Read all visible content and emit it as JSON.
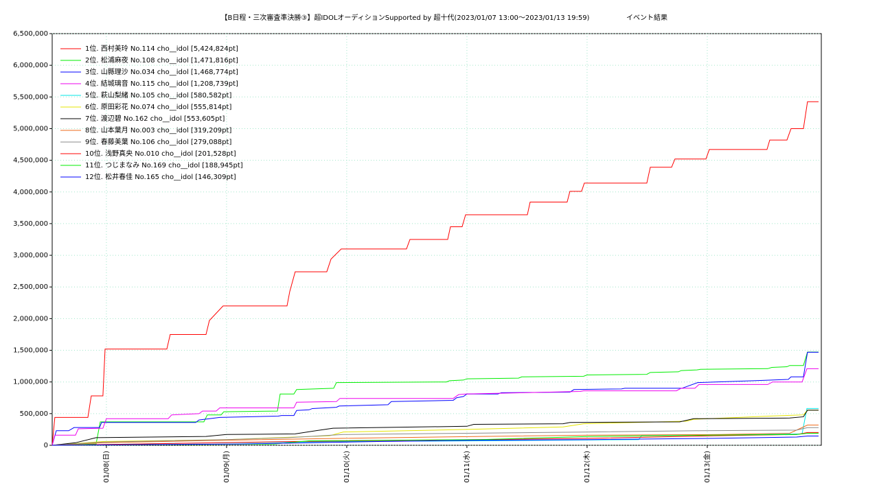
{
  "chart_data": {
    "type": "line",
    "title": "【B日程・三次審査準決勝③】超IDOLオーディションSupported by 超十代(2023/01/07 13:00～2023/01/13 19:59)",
    "subtitle": "イベント結果",
    "xlim": [
      0.549,
      6.949
    ],
    "xticks": [
      {
        "value": 1,
        "label": "01/08(日)"
      },
      {
        "value": 2,
        "label": "01/09(月)"
      },
      {
        "value": 3,
        "label": "01/10(火)"
      },
      {
        "value": 4,
        "label": "01/11(水)"
      },
      {
        "value": 5,
        "label": "01/12(木)"
      },
      {
        "value": 6,
        "label": "01/13(金)"
      }
    ],
    "ylim": [
      0,
      6500000
    ],
    "yticks": [
      {
        "value": 0,
        "label": "0"
      },
      {
        "value": 500000,
        "label": "500,000"
      },
      {
        "value": 1000000,
        "label": "1,000,000"
      },
      {
        "value": 1500000,
        "label": "1,500,000"
      },
      {
        "value": 2000000,
        "label": "2,000,000"
      },
      {
        "value": 2500000,
        "label": "2,500,000"
      },
      {
        "value": 3000000,
        "label": "3,000,000"
      },
      {
        "value": 3500000,
        "label": "3,500,000"
      },
      {
        "value": 4000000,
        "label": "4,000,000"
      },
      {
        "value": 4500000,
        "label": "4,500,000"
      },
      {
        "value": 5000000,
        "label": "5,000,000"
      },
      {
        "value": 5500000,
        "label": "5,500,000"
      },
      {
        "value": 6000000,
        "label": "6,000,000"
      },
      {
        "value": 6500000,
        "label": "6,500,000"
      }
    ],
    "grid": true,
    "legend": "upper left",
    "series": [
      {
        "name": "1位. 西村美玲 No.114 cho__idol [5,424,824pt]",
        "color": "#ff0000",
        "x": [
          0.549,
          0.571,
          0.846,
          0.874,
          0.971,
          0.989,
          1.503,
          1.531,
          1.829,
          1.857,
          1.971,
          2.503,
          2.526,
          2.571,
          2.834,
          2.869,
          2.954,
          3.497,
          3.526,
          3.84,
          3.863,
          3.96,
          3.989,
          4.503,
          4.526,
          4.834,
          4.857,
          4.954,
          4.977,
          5.497,
          5.526,
          5.703,
          5.731,
          5.989,
          6.017,
          6.497,
          6.52,
          6.663,
          6.697,
          6.8,
          6.834,
          6.926
        ],
        "values": [
          0,
          440000,
          440000,
          780000,
          780000,
          1520000,
          1520000,
          1750000,
          1750000,
          1970000,
          2200000,
          2200000,
          2430000,
          2740000,
          2740000,
          2940000,
          3100000,
          3100000,
          3250000,
          3250000,
          3450000,
          3450000,
          3640000,
          3640000,
          3840000,
          3840000,
          4010000,
          4010000,
          4140000,
          4140000,
          4390000,
          4390000,
          4520000,
          4520000,
          4670000,
          4670000,
          4820000,
          4820000,
          5000000,
          5000000,
          5424824,
          5424824
        ]
      },
      {
        "name": "2位. 松浦麻夜 No.108 cho__idol [1,471,816pt]",
        "color": "#00ee00",
        "x": [
          0.549,
          0.914,
          0.949,
          1.811,
          1.84,
          1.954,
          1.977,
          2.423,
          2.446,
          2.56,
          2.583,
          2.891,
          2.914,
          3.829,
          3.857,
          3.971,
          4.0,
          4.429,
          4.457,
          4.971,
          5.0,
          5.497,
          5.526,
          5.76,
          5.783,
          5.914,
          5.943,
          6.503,
          6.537,
          6.663,
          6.686,
          6.8,
          6.834,
          6.926
        ],
        "values": [
          0,
          20000,
          370000,
          370000,
          480000,
          480000,
          530000,
          540000,
          810000,
          810000,
          880000,
          900000,
          990000,
          1000000,
          1020000,
          1030000,
          1050000,
          1060000,
          1080000,
          1090000,
          1110000,
          1120000,
          1150000,
          1160000,
          1180000,
          1190000,
          1200000,
          1210000,
          1230000,
          1240000,
          1260000,
          1260000,
          1471816,
          1471816
        ]
      },
      {
        "name": "3位. 山縣理沙 No.034 cho__idol [1,468,774pt]",
        "color": "#0000ff",
        "x": [
          0.549,
          0.583,
          0.686,
          0.731,
          0.943,
          0.96,
          1.743,
          1.771,
          1.943,
          2.429,
          2.457,
          2.56,
          2.583,
          2.686,
          2.714,
          2.914,
          2.937,
          3.343,
          3.371,
          3.886,
          3.914,
          3.971,
          4.0,
          4.257,
          4.286,
          4.857,
          4.891,
          5.286,
          5.314,
          5.789,
          5.92,
          6.389,
          6.674,
          6.697,
          6.8,
          6.834,
          6.926
        ],
        "values": [
          0,
          230000,
          230000,
          280000,
          280000,
          360000,
          360000,
          400000,
          440000,
          460000,
          470000,
          470000,
          550000,
          560000,
          580000,
          600000,
          620000,
          640000,
          690000,
          710000,
          750000,
          770000,
          810000,
          810000,
          830000,
          840000,
          880000,
          890000,
          900000,
          900000,
          990000,
          1020000,
          1040000,
          1080000,
          1080000,
          1468774,
          1468774
        ]
      },
      {
        "name": "4位. 結城璃音 No.115 cho__idol [1,208,739pt]",
        "color": "#ee00ee",
        "x": [
          0.549,
          0.571,
          0.743,
          0.766,
          0.971,
          1.0,
          1.514,
          1.543,
          1.771,
          1.8,
          1.914,
          1.943,
          2.56,
          2.583,
          2.914,
          2.943,
          3.886,
          3.931,
          3.989,
          4.943,
          4.971,
          5.743,
          5.783,
          5.897,
          5.931,
          6.503,
          6.543,
          6.789,
          6.829,
          6.926
        ],
        "values": [
          0,
          160000,
          160000,
          260000,
          270000,
          420000,
          420000,
          480000,
          500000,
          540000,
          540000,
          590000,
          590000,
          680000,
          690000,
          740000,
          740000,
          800000,
          810000,
          850000,
          860000,
          860000,
          900000,
          900000,
          960000,
          960000,
          1000000,
          1000000,
          1208739,
          1208739
        ]
      },
      {
        "name": "5位. 萩山梨緒 No.105 cho__idol [580,582pt]",
        "color": "#00e5e5",
        "x": [
          0.549,
          1.543,
          2.514,
          2.971,
          4.114,
          5.429,
          5.457,
          6.4,
          6.789,
          6.829,
          6.926
        ],
        "values": [
          0,
          30000,
          50000,
          60000,
          70000,
          90000,
          160000,
          170000,
          180000,
          580582,
          580582
        ]
      },
      {
        "name": "6位. 原田彩花 No.074 cho__idol [555,814pt]",
        "color": "#e5e500",
        "x": [
          0.549,
          0.971,
          2.0,
          2.857,
          2.971,
          4.0,
          4.8,
          4.971,
          5.829,
          5.886,
          6.514,
          6.8,
          6.834,
          6.926
        ],
        "values": [
          0,
          60000,
          90000,
          150000,
          210000,
          250000,
          290000,
          340000,
          380000,
          410000,
          460000,
          480000,
          555814,
          555814
        ]
      },
      {
        "name": "7位. 渡辺碧 No.162 cho__idol [553,605pt]",
        "color": "#000000",
        "x": [
          0.549,
          0.743,
          0.914,
          1.829,
          2.0,
          2.571,
          2.743,
          2.886,
          4.0,
          4.057,
          4.8,
          4.857,
          5.771,
          5.886,
          6.686,
          6.8,
          6.834,
          6.926
        ],
        "values": [
          0,
          40000,
          120000,
          140000,
          170000,
          180000,
          230000,
          270000,
          300000,
          330000,
          340000,
          360000,
          370000,
          420000,
          430000,
          450000,
          553605,
          553605
        ]
      },
      {
        "name": "8位. 山本葉月 No.003 cho__idol [319,209pt]",
        "color": "#ee6a1a",
        "x": [
          0.549,
          0.971,
          2.0,
          2.971,
          4.114,
          5.029,
          6.114,
          6.686,
          6.834,
          6.926
        ],
        "values": [
          0,
          40000,
          80000,
          110000,
          140000,
          160000,
          170000,
          190000,
          319209,
          319209
        ]
      },
      {
        "name": "9位. 春藤美葉 No.106 cho__idol [279,088pt]",
        "color": "#888888",
        "x": [
          0.549,
          0.971,
          2.0,
          2.514,
          2.971,
          4.0,
          5.029,
          5.943,
          6.743,
          6.834,
          6.926
        ],
        "values": [
          0,
          50000,
          90000,
          120000,
          170000,
          190000,
          210000,
          230000,
          240000,
          279088,
          279088
        ]
      },
      {
        "name": "10位. 浅野真央 No.010 cho__idol [201,528pt]",
        "color": "#ff0000",
        "x": [
          0.549,
          1.257,
          2.571,
          4.114,
          5.029,
          6.057,
          6.743,
          6.834,
          6.926
        ],
        "values": [
          0,
          20000,
          60000,
          90000,
          110000,
          150000,
          170000,
          201528,
          201528
        ]
      },
      {
        "name": "11位. つじまなみ No.169 cho__idol [188,945pt]",
        "color": "#00ee00",
        "x": [
          0.549,
          2.4,
          2.686,
          4.114,
          5.029,
          6.057,
          6.743,
          6.834,
          6.926
        ],
        "values": [
          0,
          20000,
          70000,
          90000,
          140000,
          160000,
          170000,
          188945,
          188945
        ]
      },
      {
        "name": "12位. 松井春佳 No.165 cho__idol [146,309pt]",
        "color": "#0000ff",
        "x": [
          0.549,
          2.114,
          3.257,
          4.114,
          5.029,
          6.057,
          6.743,
          6.834,
          6.926
        ],
        "values": [
          0,
          20000,
          60000,
          80000,
          90000,
          110000,
          130000,
          146309,
          146309
        ]
      }
    ]
  }
}
